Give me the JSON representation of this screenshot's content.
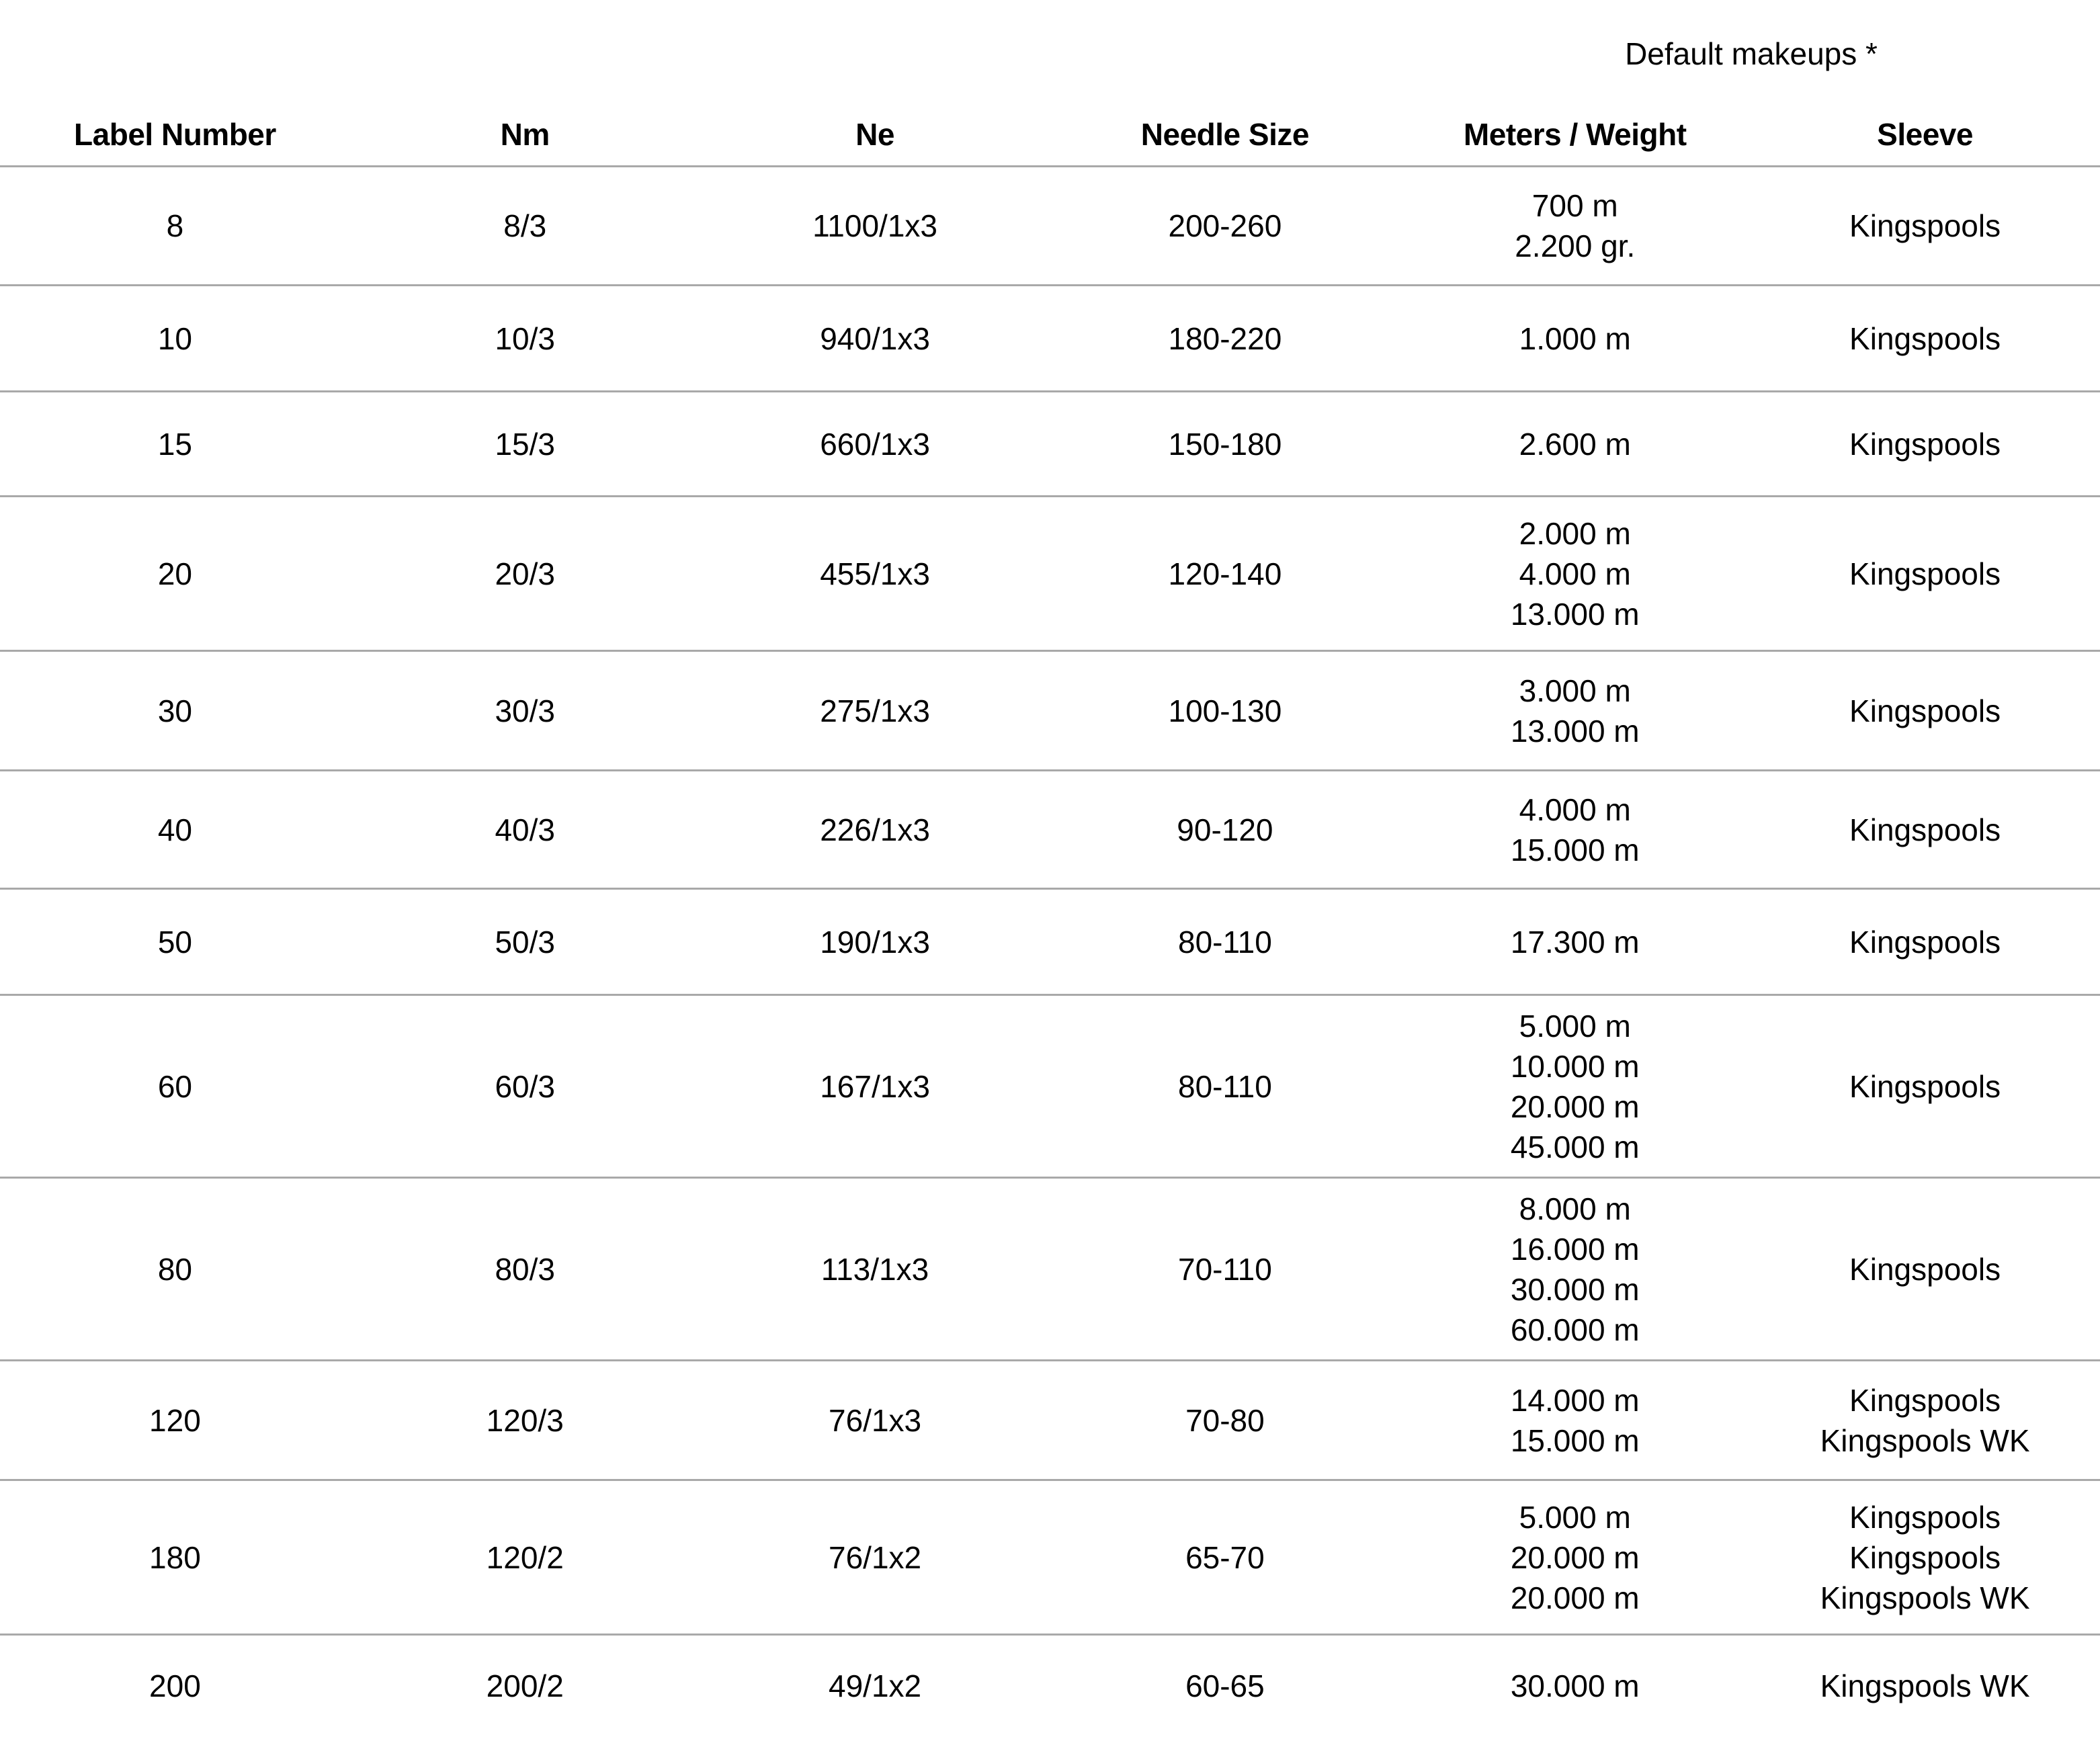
{
  "note": "Default makeups *",
  "headers": [
    "Label Number",
    "Nm",
    "Ne",
    "Needle Size",
    "Meters / Weight",
    "Sleeve"
  ],
  "rows": [
    {
      "label": "8",
      "nm": "8/3",
      "ne": "1100/1x3",
      "needle": "200-260",
      "meters": [
        "700 m",
        "2.200 gr."
      ],
      "sleeve": [
        "Kingspools"
      ]
    },
    {
      "label": "10",
      "nm": "10/3",
      "ne": "940/1x3",
      "needle": "180-220",
      "meters": [
        "1.000 m"
      ],
      "sleeve": [
        "Kingspools"
      ]
    },
    {
      "label": "15",
      "nm": "15/3",
      "ne": "660/1x3",
      "needle": "150-180",
      "meters": [
        "2.600 m"
      ],
      "sleeve": [
        "Kingspools"
      ]
    },
    {
      "label": "20",
      "nm": "20/3",
      "ne": "455/1x3",
      "needle": "120-140",
      "meters": [
        "2.000 m",
        "4.000 m",
        "13.000 m"
      ],
      "sleeve": [
        "Kingspools"
      ]
    },
    {
      "label": "30",
      "nm": "30/3",
      "ne": "275/1x3",
      "needle": "100-130",
      "meters": [
        "3.000 m",
        "13.000 m"
      ],
      "sleeve": [
        "Kingspools"
      ]
    },
    {
      "label": "40",
      "nm": "40/3",
      "ne": "226/1x3",
      "needle": "90-120",
      "meters": [
        "4.000 m",
        "15.000 m"
      ],
      "sleeve": [
        "Kingspools"
      ]
    },
    {
      "label": "50",
      "nm": "50/3",
      "ne": "190/1x3",
      "needle": "80-110",
      "meters": [
        "17.300 m"
      ],
      "sleeve": [
        "Kingspools"
      ]
    },
    {
      "label": "60",
      "nm": "60/3",
      "ne": "167/1x3",
      "needle": "80-110",
      "meters": [
        "5.000 m",
        "10.000 m",
        "20.000 m",
        "45.000 m"
      ],
      "sleeve": [
        "Kingspools"
      ]
    },
    {
      "label": "80",
      "nm": "80/3",
      "ne": "113/1x3",
      "needle": "70-110",
      "meters": [
        "8.000 m",
        "16.000 m",
        "30.000 m",
        "60.000 m"
      ],
      "sleeve": [
        "Kingspools"
      ]
    },
    {
      "label": "120",
      "nm": "120/3",
      "ne": "76/1x3",
      "needle": "70-80",
      "meters": [
        "14.000 m",
        "15.000 m"
      ],
      "sleeve": [
        "Kingspools",
        "Kingspools WK"
      ]
    },
    {
      "label": "180",
      "nm": "120/2",
      "ne": "76/1x2",
      "needle": "65-70",
      "meters": [
        "5.000 m",
        "20.000 m",
        "20.000 m"
      ],
      "sleeve": [
        "Kingspools",
        "Kingspools",
        "Kingspools WK"
      ]
    },
    {
      "label": "200",
      "nm": "200/2",
      "ne": "49/1x2",
      "needle": "60-65",
      "meters": [
        "30.000 m"
      ],
      "sleeve": [
        "Kingspools WK"
      ]
    }
  ],
  "colors": {
    "text": "#000000",
    "divider": "#a9a9a9",
    "background": "#ffffff"
  }
}
